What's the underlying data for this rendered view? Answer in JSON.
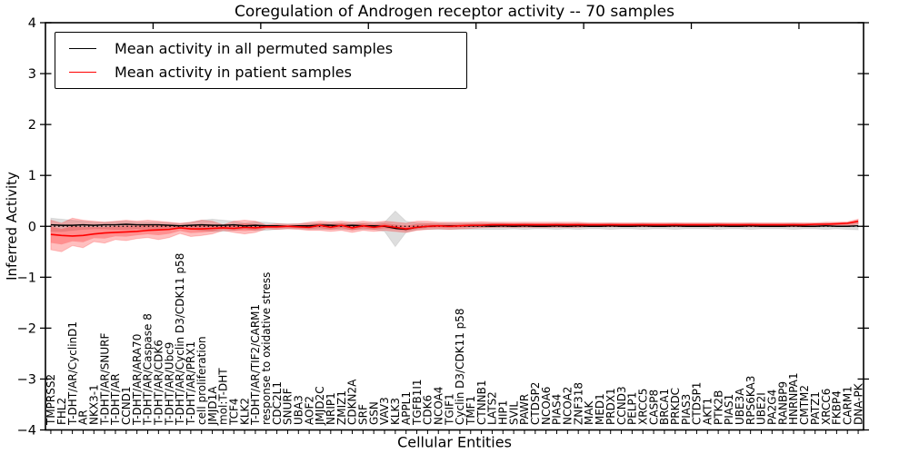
{
  "figure": {
    "title": "Coregulation of Androgen receptor activity -- 70 samples",
    "xlabel": "Cellular Entities",
    "ylabel": "Inferred Activity"
  },
  "legend": {
    "items": [
      {
        "label": "Mean activity in all permuted samples",
        "color": "#000000"
      },
      {
        "label": "Mean activity in patient samples",
        "color": "#ff0000"
      }
    ]
  },
  "chart_data": {
    "type": "line",
    "title": "Coregulation of Androgen receptor activity -- 70 samples",
    "xlabel": "Cellular Entities",
    "ylabel": "Inferred Activity",
    "ylim": [
      -4,
      4
    ],
    "yticks": [
      4,
      3,
      2,
      1,
      0,
      -1,
      -2,
      -3,
      -4
    ],
    "xticks_major_unlabeled": [
      10,
      20,
      30,
      40,
      50,
      60,
      70
    ],
    "grid": false,
    "legend_position": "upper left",
    "zero_line": {
      "style": "dotted",
      "color": "#000000",
      "y": 0
    },
    "categories": [
      "TMPRSS2",
      "FHL2",
      "T-DHT/AR/CyclinD1",
      "AR",
      "NKX3-1",
      "T-DHT/AR/SNURF",
      "T-DHT/AR",
      "CCND1",
      "T-DHT/AR/ARA70",
      "T-DHT/AR/Caspase 8",
      "T-DHT/AR/CDK6",
      "T-DHT/AR/Ubc9",
      "T-DHT/AR/Cyclin D3/CDK11 p58",
      "T-DHT/AR/PRX1",
      "cell proliferation",
      "JMJD1A",
      "mol:T-DHT",
      "TCF4",
      "KLK2",
      "T-DHT/AR/TIF2/CARM1",
      "response to oxidative stress",
      "CDC2L1",
      "SNURF",
      "UBA3",
      "AOF2",
      "JMJD2C",
      "NRIP1",
      "ZMIZ1",
      "CDKN2A",
      "SRF",
      "GSN",
      "VAV3",
      "KLK3",
      "APPL1",
      "TGFB1I1",
      "CDK6",
      "NCOA4",
      "TGIF1",
      "Cyclin D3/CDK11 p58",
      "TMF1",
      "CTNNB1",
      "LATS2",
      "HIP1",
      "SVIL",
      "PAWR",
      "CTDSP2",
      "NCOA6",
      "PIAS4",
      "NCOA2",
      "ZNF318",
      "MAK",
      "MED1",
      "PRDX1",
      "CCND3",
      "PELP1",
      "XRCC5",
      "CASP8",
      "BRCA1",
      "PRKDC",
      "PIAS3",
      "CTDSP1",
      "AKT1",
      "PTK2B",
      "PIAS1",
      "UBE3A",
      "RPS6KA3",
      "UBE2I",
      "PA2G4",
      "RANBP9",
      "HNRNPA1",
      "CMTM2",
      "PATZ1",
      "XRCC6",
      "FKBP4",
      "CARM1",
      "DNA-PK"
    ],
    "series": [
      {
        "name": "Mean activity in all permuted samples",
        "color": "#000000",
        "values": [
          0.03,
          0.02,
          0.02,
          0.03,
          0.02,
          0.03,
          0.03,
          0.04,
          0.03,
          0.03,
          0.03,
          0.02,
          0.01,
          0.02,
          0.03,
          0.02,
          0.02,
          0.03,
          0.01,
          0.02,
          0.01,
          0.01,
          0.0,
          0.01,
          0.01,
          0.02,
          0.02,
          0.01,
          0.02,
          0.01,
          0.01,
          0.0,
          -0.04,
          -0.06,
          -0.02,
          0.0,
          0.01,
          0.01,
          0.01,
          0.01,
          0.01,
          0.0,
          0.01,
          0.0,
          0.01,
          0.0,
          0.0,
          0.01,
          0.0,
          0.01,
          0.0,
          0.0,
          0.01,
          0.0,
          0.0,
          0.01,
          0.0,
          0.0,
          0.01,
          0.0,
          0.0,
          0.0,
          0.01,
          0.0,
          0.0,
          0.01,
          0.0,
          0.0,
          0.0,
          0.01,
          0.0,
          0.0,
          0.01,
          0.0,
          0.0,
          0.01
        ]
      },
      {
        "name": "Mean activity in patient samples",
        "color": "#ff0000",
        "values": [
          -0.16,
          -0.18,
          -0.19,
          -0.18,
          -0.15,
          -0.13,
          -0.12,
          -0.11,
          -0.1,
          -0.08,
          -0.07,
          -0.06,
          -0.03,
          -0.05,
          -0.05,
          -0.04,
          -0.03,
          -0.04,
          -0.02,
          -0.03,
          -0.01,
          -0.01,
          0.0,
          -0.01,
          -0.02,
          0.02,
          -0.02,
          0.02,
          -0.03,
          0.01,
          -0.02,
          0.01,
          -0.02,
          -0.05,
          -0.02,
          0.0,
          0.01,
          0.0,
          0.01,
          0.02,
          0.02,
          0.03,
          0.03,
          0.03,
          0.03,
          0.03,
          0.03,
          0.03,
          0.03,
          0.03,
          0.03,
          0.03,
          0.03,
          0.03,
          0.03,
          0.03,
          0.03,
          0.03,
          0.03,
          0.03,
          0.03,
          0.03,
          0.03,
          0.03,
          0.03,
          0.03,
          0.03,
          0.03,
          0.03,
          0.03,
          0.03,
          0.04,
          0.04,
          0.05,
          0.06,
          0.1
        ]
      }
    ],
    "bands": [
      {
        "name": "permuted samples spread",
        "color": "#000000",
        "fill_alpha": 0.13,
        "upper": [
          0.16,
          0.14,
          0.12,
          0.1,
          0.08,
          0.08,
          0.09,
          0.1,
          0.08,
          0.08,
          0.08,
          0.07,
          0.05,
          0.08,
          0.12,
          0.14,
          0.12,
          0.1,
          0.06,
          0.09,
          0.08,
          0.06,
          0.05,
          0.05,
          0.06,
          0.06,
          0.07,
          0.06,
          0.07,
          0.06,
          0.06,
          0.08,
          0.3,
          0.1,
          0.07,
          0.06,
          0.06,
          0.06,
          0.06,
          0.06,
          0.06,
          0.06,
          0.06,
          0.05,
          0.06,
          0.05,
          0.05,
          0.06,
          0.05,
          0.06,
          0.05,
          0.05,
          0.06,
          0.05,
          0.05,
          0.06,
          0.05,
          0.05,
          0.06,
          0.05,
          0.05,
          0.05,
          0.06,
          0.05,
          0.05,
          0.06,
          0.05,
          0.05,
          0.05,
          0.06,
          0.05,
          0.05,
          0.06,
          0.05,
          0.06,
          0.08
        ],
        "lower": [
          -0.1,
          -0.1,
          -0.08,
          -0.06,
          -0.05,
          -0.05,
          -0.06,
          -0.06,
          -0.05,
          -0.06,
          -0.06,
          -0.05,
          -0.04,
          -0.06,
          -0.08,
          -0.1,
          -0.1,
          -0.08,
          -0.05,
          -0.08,
          -0.08,
          -0.06,
          -0.05,
          -0.05,
          -0.06,
          -0.06,
          -0.06,
          -0.06,
          -0.07,
          -0.06,
          -0.06,
          -0.1,
          -0.4,
          -0.12,
          -0.07,
          -0.06,
          -0.06,
          -0.06,
          -0.06,
          -0.06,
          -0.06,
          -0.06,
          -0.06,
          -0.05,
          -0.06,
          -0.05,
          -0.05,
          -0.06,
          -0.05,
          -0.06,
          -0.05,
          -0.05,
          -0.06,
          -0.05,
          -0.05,
          -0.06,
          -0.05,
          -0.05,
          -0.06,
          -0.05,
          -0.05,
          -0.05,
          -0.06,
          -0.05,
          -0.05,
          -0.06,
          -0.05,
          -0.05,
          -0.05,
          -0.06,
          -0.05,
          -0.05,
          -0.06,
          -0.05,
          -0.06,
          -0.07
        ]
      },
      {
        "name": "patient samples spread",
        "color": "#ff0000",
        "fill_alpha": 0.25,
        "upper": [
          0.12,
          0.06,
          0.16,
          0.12,
          0.1,
          0.08,
          0.1,
          0.12,
          0.1,
          0.12,
          0.1,
          0.08,
          0.06,
          0.08,
          0.12,
          0.1,
          0.03,
          0.1,
          0.12,
          0.1,
          0.03,
          0.05,
          0.04,
          0.05,
          0.08,
          0.1,
          0.09,
          0.1,
          0.08,
          0.1,
          0.08,
          0.1,
          0.08,
          0.06,
          0.1,
          0.1,
          0.08,
          0.08,
          0.08,
          0.08,
          0.09,
          0.08,
          0.08,
          0.08,
          0.08,
          0.08,
          0.08,
          0.08,
          0.08,
          0.08,
          0.07,
          0.07,
          0.07,
          0.07,
          0.07,
          0.07,
          0.07,
          0.07,
          0.07,
          0.07,
          0.07,
          0.07,
          0.07,
          0.07,
          0.07,
          0.07,
          0.07,
          0.07,
          0.07,
          0.07,
          0.07,
          0.07,
          0.08,
          0.08,
          0.09,
          0.14
        ],
        "lower": [
          -0.46,
          -0.5,
          -0.38,
          -0.42,
          -0.3,
          -0.33,
          -0.26,
          -0.28,
          -0.24,
          -0.22,
          -0.26,
          -0.22,
          -0.14,
          -0.2,
          -0.18,
          -0.15,
          -0.08,
          -0.12,
          -0.15,
          -0.12,
          -0.05,
          -0.06,
          -0.05,
          -0.06,
          -0.08,
          -0.08,
          -0.1,
          -0.08,
          -0.12,
          -0.08,
          -0.1,
          -0.08,
          -0.1,
          -0.12,
          -0.08,
          -0.06,
          -0.05,
          -0.06,
          -0.05,
          -0.04,
          -0.03,
          -0.02,
          -0.02,
          -0.02,
          -0.02,
          -0.02,
          -0.02,
          -0.02,
          -0.02,
          -0.02,
          -0.01,
          -0.01,
          -0.01,
          -0.01,
          -0.01,
          -0.01,
          -0.01,
          -0.01,
          -0.01,
          -0.01,
          -0.01,
          -0.01,
          -0.01,
          -0.01,
          -0.01,
          -0.01,
          -0.01,
          -0.01,
          -0.01,
          -0.01,
          -0.01,
          -0.01,
          0.0,
          0.0,
          0.01,
          0.04
        ]
      }
    ]
  }
}
